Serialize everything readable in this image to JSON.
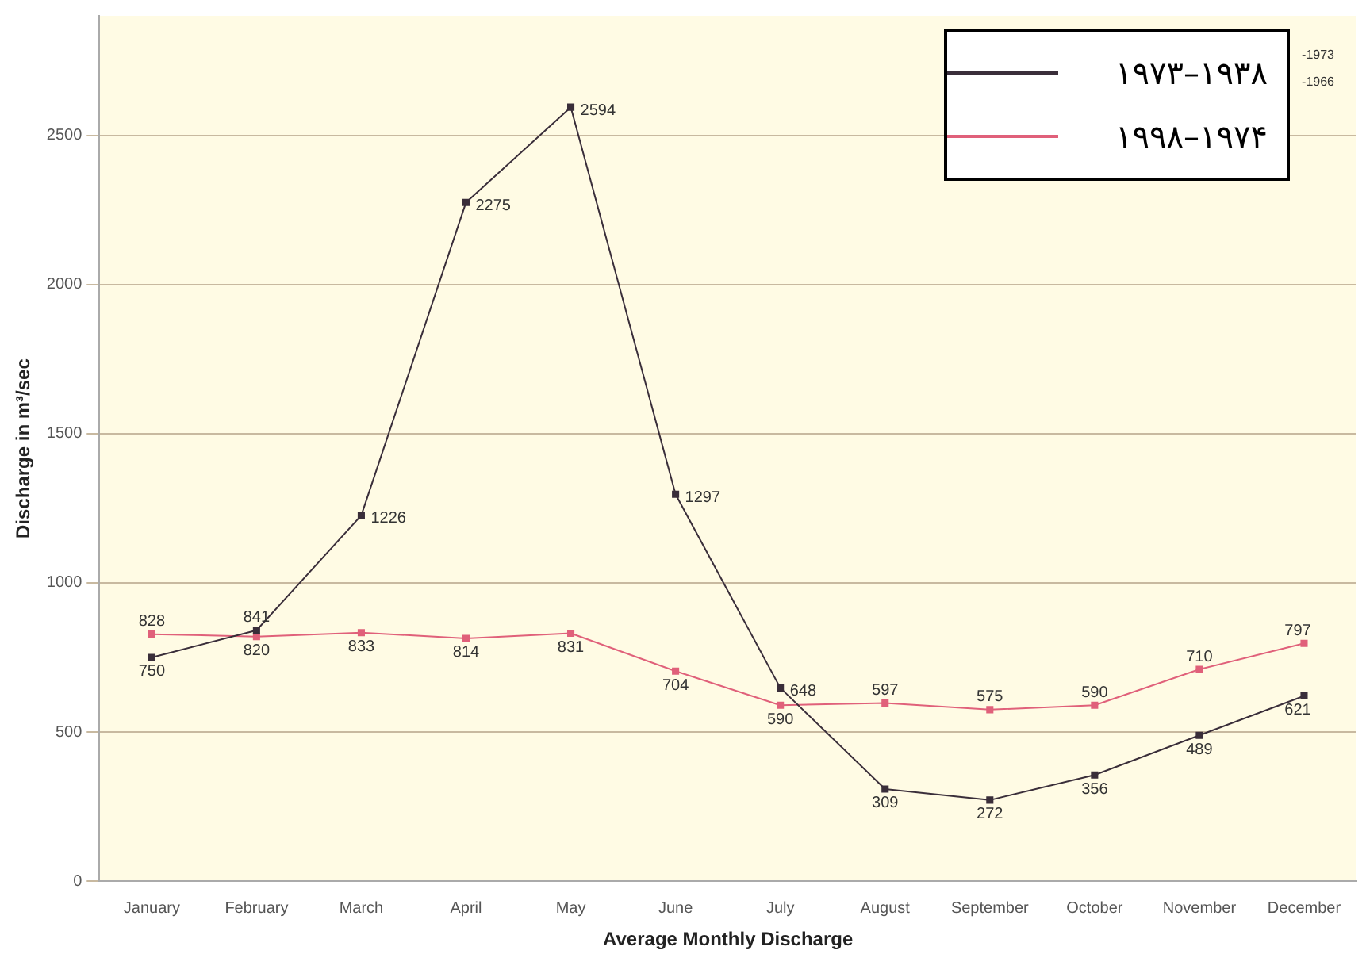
{
  "chart_data": {
    "type": "line",
    "xlabel": "Average Monthly Discharge",
    "ylabel": "Discharge in m³/sec",
    "categories": [
      "January",
      "February",
      "March",
      "April",
      "May",
      "June",
      "July",
      "August",
      "September",
      "October",
      "November",
      "December"
    ],
    "series": [
      {
        "name": "۱۹۷۳–۱۹۳۸",
        "color": "#3a2e3a",
        "values": [
          750,
          841,
          1226,
          2275,
          2594,
          1297,
          648,
          309,
          272,
          356,
          489,
          621
        ]
      },
      {
        "name": "۱۹۹۸–۱۹۷۴",
        "color": "#e0607a",
        "values": [
          828,
          820,
          833,
          814,
          831,
          704,
          590,
          597,
          575,
          590,
          710,
          797
        ]
      }
    ],
    "ylim": [
      0,
      2900
    ],
    "yticks": [
      0,
      500,
      1000,
      1500,
      2000,
      2500
    ],
    "grid": "y",
    "legend": "top right",
    "marker": "square",
    "data_labels": true,
    "annotations": [
      "-1973",
      "-1966"
    ]
  }
}
